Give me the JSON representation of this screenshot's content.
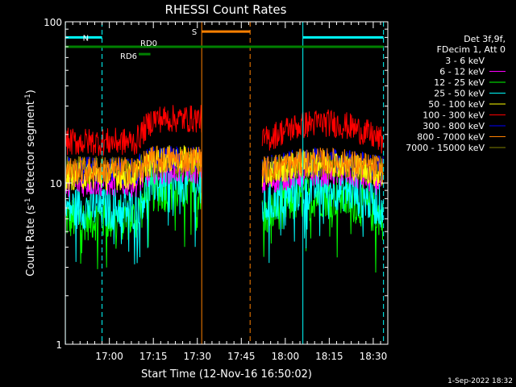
{
  "chart_data": {
    "type": "line",
    "title": "RHESSI Count Rates",
    "xlabel": "Start Time (12-Nov-16 16:50:02)",
    "ylabel_main": "Count Rate (s",
    "ylabel_exp1": "-1",
    "ylabel_mid": " detector segment",
    "ylabel_exp2": "-1",
    "ylabel_end": ")",
    "y_scale": "log",
    "ylim": [
      1,
      100
    ],
    "xlim_minutes": [
      -5.03,
      104.97
    ],
    "x_ticks": [
      {
        "label": "17:00",
        "t": 10
      },
      {
        "label": "17:15",
        "t": 25
      },
      {
        "label": "17:30",
        "t": 40
      },
      {
        "label": "17:45",
        "t": 55
      },
      {
        "label": "18:00",
        "t": 70
      },
      {
        "label": "18:15",
        "t": 85
      },
      {
        "label": "18:30",
        "t": 100
      }
    ],
    "y_ticks": [
      {
        "label": "1",
        "v": 1
      },
      {
        "label": "10",
        "v": 10
      },
      {
        "label": "100",
        "v": 100
      }
    ],
    "legend_header": [
      "Det 3f,9f,",
      "FDecim 1, Att 0"
    ],
    "series": [
      {
        "name": "3 - 6 keV",
        "color": "#000000",
        "base": 12,
        "peak": 16
      },
      {
        "name": "6 - 12 keV",
        "color": "#ff00ff",
        "base": 10,
        "peak": 12
      },
      {
        "name": "12 - 25 keV",
        "color": "#00ff00",
        "base": 6,
        "peak": 9
      },
      {
        "name": "25 - 50 keV",
        "color": "#00ffff",
        "base": 7,
        "peak": 10
      },
      {
        "name": "50 - 100 keV",
        "color": "#ffff00",
        "base": 11,
        "peak": 14
      },
      {
        "name": "100 - 300 keV",
        "color": "#ff0000",
        "base": 18,
        "peak": 25
      },
      {
        "name": "300 - 800 keV",
        "color": "#0000ff",
        "base": 12,
        "peak": 14
      },
      {
        "name": "800 - 7000 keV",
        "color": "#ff8000",
        "base": 12,
        "peak": 14
      },
      {
        "name": "7000 - 15000 keV",
        "color": "#808000",
        "base": 12,
        "peak": 13
      }
    ],
    "intervals": [
      {
        "label": "N",
        "start": -5,
        "end": 7.5,
        "level": 80,
        "color": "#00ffff"
      },
      {
        "label": "",
        "start": 76,
        "end": 103.5,
        "level": 80,
        "color": "#00ffff"
      },
      {
        "label": "S",
        "start": 41.5,
        "end": 58,
        "level": 87,
        "color": "#ff8000"
      },
      {
        "label": "RD0",
        "start": -5,
        "end": 103.5,
        "level": 70,
        "color": "#008000"
      },
      {
        "label": "RD6",
        "start": 20,
        "end": 24,
        "level": 63,
        "color": "#008000"
      }
    ],
    "vlines": [
      {
        "t": -5,
        "color": "#00ffff",
        "dash": false
      },
      {
        "t": 7.5,
        "color": "#00ffff",
        "dash": true
      },
      {
        "t": 41.5,
        "color": "#ff8000",
        "dash": false
      },
      {
        "t": 58,
        "color": "#ff8000",
        "dash": true
      },
      {
        "t": 76,
        "color": "#00ffff",
        "dash": false
      },
      {
        "t": 103.5,
        "color": "#00ffff",
        "dash": true
      }
    ],
    "data_gaps": [
      [
        41.5,
        62
      ],
      [
        103.5,
        105
      ]
    ],
    "footer_timestamp": "1-Sep-2022 18:32"
  }
}
